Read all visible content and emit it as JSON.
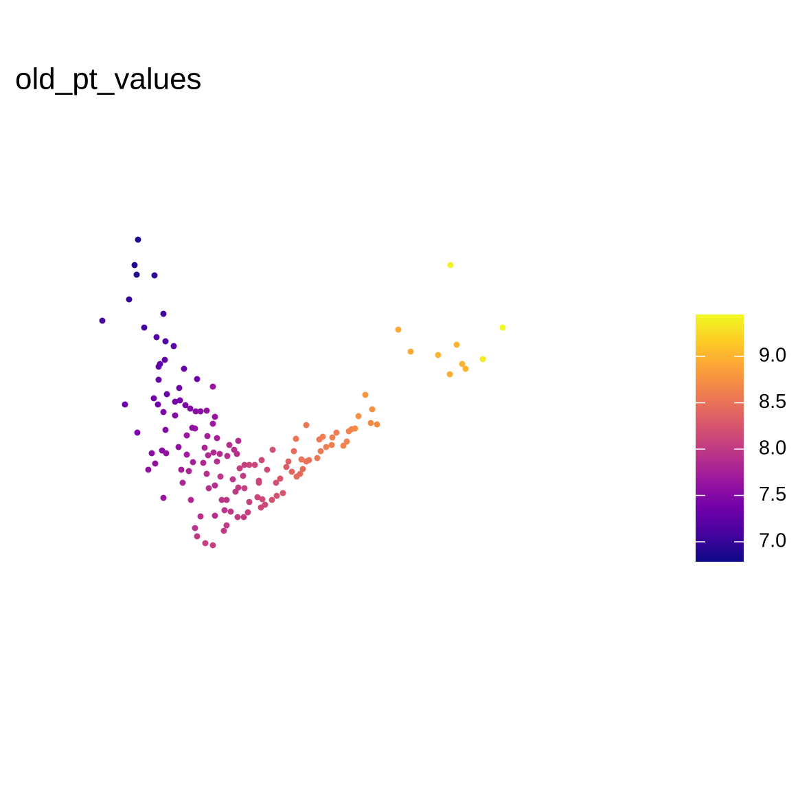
{
  "chart_data": {
    "type": "scatter",
    "title": "old_pt_values",
    "x": [
      201,
      196,
      199,
      225,
      188,
      149,
      238,
      210,
      228,
      241,
      253,
      240,
      233,
      231,
      268,
      287,
      231,
      310,
      261,
      243,
      224,
      182,
      230,
      255,
      262,
      270,
      277,
      285,
      292,
      301,
      238,
      255,
      313,
      310,
      284,
      280,
      241,
      200,
      272,
      302,
      316,
      347,
      260,
      298,
      334,
      341,
      236,
      221,
      242,
      311,
      320,
      345,
      272,
      303,
      331,
      281,
      226,
      296,
      316,
      397,
      381,
      371,
      363,
      356,
      349,
      216,
      264,
      275,
      301,
      321,
      339,
      354,
      389,
      377,
      266,
      313,
      347,
      343,
      356,
      377,
      402,
      408,
      417,
      420,
      428,
      446,
      431,
      238,
      304,
      412,
      403,
      396,
      382,
      375,
      386,
      278,
      323,
      330,
      363,
      336,
      361,
      327,
      355,
      346,
      292,
      313,
      380,
      425,
      432,
      437,
      441,
      446,
      450,
      439,
      462,
      467,
      475,
      483,
      465,
      470,
      484,
      490,
      500,
      505,
      508,
      512,
      517,
      522,
      532,
      542,
      540,
      549,
      330,
      326,
      284,
      287,
      299,
      310,
      580,
      598,
      638,
      665,
      656,
      732,
      703,
      673,
      678,
      655
    ],
    "y": [
      651,
      614,
      600,
      599,
      564,
      533,
      543,
      523,
      509,
      503,
      496,
      476,
      470,
      466,
      463,
      448,
      447,
      437,
      435,
      426,
      420,
      411,
      411,
      415,
      417,
      410,
      405,
      401,
      401,
      402,
      400,
      395,
      393,
      383,
      376,
      377,
      374,
      370,
      366,
      365,
      362,
      358,
      349,
      348,
      352,
      345,
      344,
      340,
      340,
      341,
      339,
      339,
      338,
      337,
      336,
      327,
      325,
      326,
      328,
      345,
      330,
      323,
      323,
      323,
      318,
      316,
      316,
      314,
      310,
      306,
      302,
      307,
      316,
      300,
      297,
      293,
      290,
      284,
      289,
      297,
      297,
      303,
      320,
      328,
      343,
      381,
      361,
      275,
      289,
      282,
      278,
      272,
      273,
      276,
      265,
      272,
      272,
      272,
      269,
      255,
      254,
      257,
      247,
      247,
      248,
      249,
      261,
      313,
      306,
      310,
      317,
      328,
      330,
      331,
      333,
      343,
      349,
      352,
      360,
      364,
      363,
      370,
      351,
      357,
      372,
      375,
      376,
      394,
      425,
      404,
      384,
      382,
      235,
      227,
      231,
      219,
      209,
      206,
      520,
      488,
      483,
      498,
      614,
      523,
      477,
      470,
      463,
      455
    ],
    "values": [
      6.85,
      6.9,
      6.9,
      6.95,
      7.0,
      7.1,
      7.05,
      7.1,
      7.15,
      7.15,
      7.2,
      7.25,
      7.25,
      7.25,
      7.3,
      7.35,
      7.3,
      7.65,
      7.35,
      7.3,
      7.35,
      7.35,
      7.35,
      7.4,
      7.4,
      7.45,
      7.5,
      7.55,
      7.55,
      7.6,
      7.45,
      7.5,
      7.65,
      7.7,
      7.65,
      7.6,
      7.5,
      7.4,
      7.65,
      7.75,
      7.75,
      7.85,
      7.6,
      7.8,
      7.9,
      7.9,
      7.55,
      7.55,
      7.6,
      7.85,
      7.85,
      7.9,
      7.7,
      7.85,
      7.9,
      7.75,
      7.6,
      7.85,
      7.9,
      8.2,
      8.15,
      8.1,
      8.1,
      8.05,
      8.05,
      7.6,
      7.75,
      7.8,
      7.9,
      7.95,
      7.95,
      8.0,
      8.15,
      8.1,
      7.8,
      7.9,
      8.0,
      8.0,
      8.05,
      8.1,
      8.2,
      8.25,
      8.3,
      8.35,
      8.45,
      8.55,
      8.5,
      7.65,
      7.9,
      8.25,
      8.2,
      8.2,
      8.15,
      8.1,
      8.15,
      7.85,
      7.95,
      7.95,
      8.05,
      8.0,
      8.05,
      7.95,
      8.0,
      8.0,
      7.9,
      7.9,
      8.15,
      8.4,
      8.45,
      8.45,
      8.45,
      8.5,
      8.5,
      8.5,
      8.55,
      8.55,
      8.6,
      8.6,
      8.55,
      8.6,
      8.6,
      8.6,
      8.65,
      8.65,
      8.65,
      8.65,
      8.7,
      8.75,
      8.8,
      8.75,
      8.7,
      8.7,
      8.0,
      8.0,
      7.95,
      8.0,
      8.05,
      8.05,
      8.95,
      8.95,
      9.0,
      9.0,
      9.4,
      9.45,
      9.35,
      9.0,
      9.0,
      8.95
    ],
    "xlim": [
      120,
      760
    ],
    "ylim": [
      160,
      680
    ],
    "colorscale": [
      "#0d0887",
      "#46039f",
      "#7201a8",
      "#9c179e",
      "#bd3786",
      "#d8576b",
      "#ed7953",
      "#fb9f3a",
      "#fdca26",
      "#f0f921"
    ],
    "colorlim": [
      6.785,
      9.452
    ],
    "colorticks": [
      {
        "value": 7,
        "label": "7.0"
      },
      {
        "value": 7.5,
        "label": "7.5"
      },
      {
        "value": 8,
        "label": "8.0"
      },
      {
        "value": 8.5,
        "label": "8.5"
      },
      {
        "value": 9,
        "label": "9.0"
      }
    ]
  }
}
